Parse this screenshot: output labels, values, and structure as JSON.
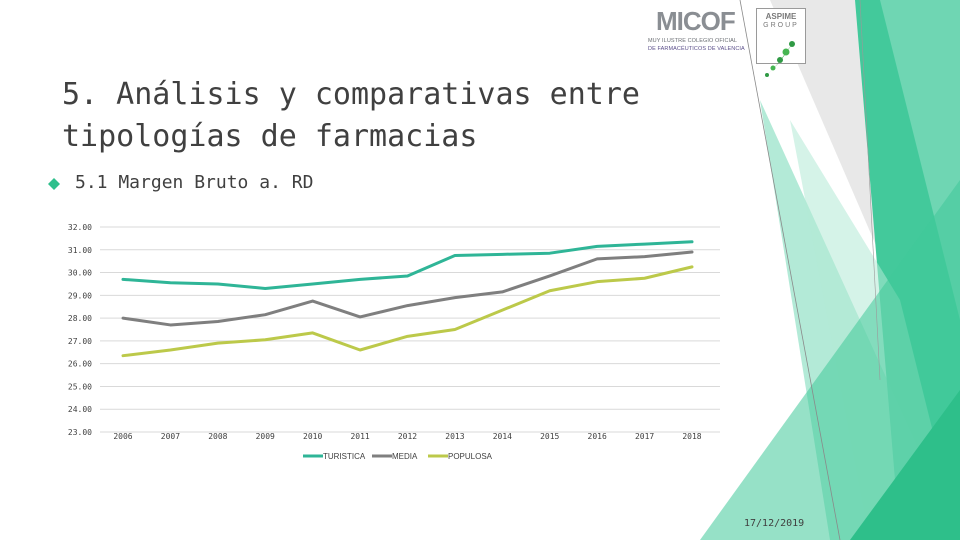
{
  "slide": {
    "title_line1": "5. Análisis y comparativas entre",
    "title_line2": "tipologías de farmacias",
    "subtitle": "5.1 Margen Bruto a. RD",
    "date": "17/12/2019",
    "accent_color": "#2fbf8c"
  },
  "logos": {
    "micof_name": "MICOF",
    "micof_line1": "MUY ILUSTRE COLEGIO OFICIAL",
    "micof_line2": "DE FARMACÉUTICOS DE VALENCIA",
    "aspime_name": "ASPIME",
    "aspime_group": "GROUP"
  },
  "chart_data": {
    "type": "line",
    "x": [
      "2006",
      "2007",
      "2008",
      "2009",
      "2010",
      "2011",
      "2012",
      "2013",
      "2014",
      "2015",
      "2016",
      "2017",
      "2018"
    ],
    "y_ticks": [
      "32.00",
      "31.00",
      "30.00",
      "29.00",
      "28.00",
      "27.00",
      "26.00",
      "25.00",
      "24.00",
      "23.00"
    ],
    "ylim": [
      23,
      32
    ],
    "grid": true,
    "legend_position": "bottom",
    "series": [
      {
        "name": "TURISTICA",
        "color": "#2fb597",
        "values": [
          29.7,
          29.55,
          29.5,
          29.3,
          29.5,
          29.7,
          29.85,
          30.75,
          30.8,
          30.85,
          31.15,
          31.25,
          31.35
        ]
      },
      {
        "name": "MEDIA",
        "color": "#7f7f7f",
        "values": [
          28.0,
          27.7,
          27.85,
          28.15,
          28.75,
          28.05,
          28.55,
          28.9,
          29.15,
          29.85,
          30.6,
          30.7,
          30.9
        ]
      },
      {
        "name": "POPULOSA",
        "color": "#bcc94a",
        "values": [
          26.35,
          26.6,
          26.9,
          27.05,
          27.35,
          26.6,
          27.2,
          27.5,
          28.35,
          29.2,
          29.6,
          29.75,
          30.25
        ]
      }
    ]
  }
}
